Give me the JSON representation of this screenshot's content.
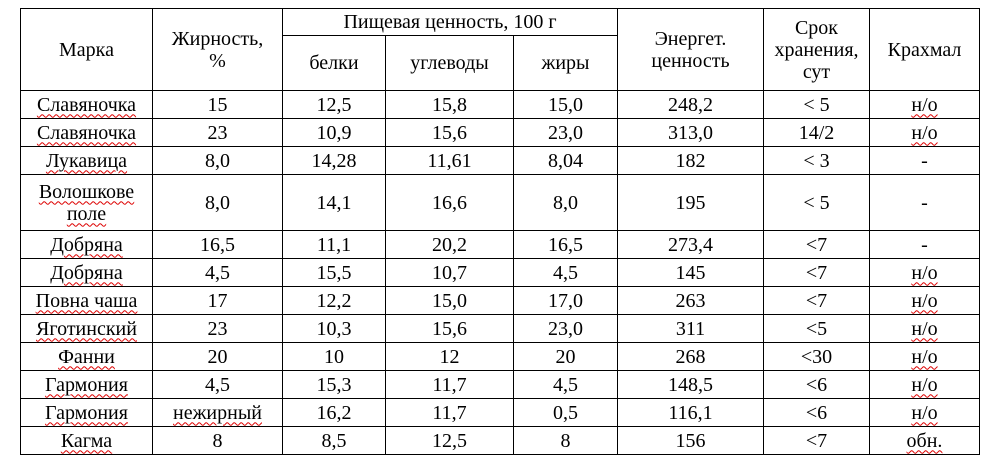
{
  "header": {
    "brand": "Марка",
    "fat": "Жирность, %",
    "nutrition": {
      "title": "Пищевая ценность, 100 г",
      "protein": "белки",
      "carbs": "углеводы",
      "fats": "жиры"
    },
    "energy": "Энергет. ценность",
    "shelf_life": "Срок хранения, сут",
    "starch": "Крахмал"
  },
  "table": {
    "rows": [
      [
        "Славяночка",
        "15",
        "12,5",
        "15,8",
        "15,0",
        "248,2",
        "< 5",
        "н/о"
      ],
      [
        "Славяночка",
        "23",
        "10,9",
        "15,6",
        "23,0",
        "313,0",
        "14/2",
        "н/о"
      ],
      [
        "Лукавица",
        "8,0",
        "14,28",
        "11,61",
        "8,04",
        "182",
        "< 3",
        "-"
      ],
      [
        "Волошкове поле",
        "8,0",
        "14,1",
        "16,6",
        "8,0",
        "195",
        "< 5",
        "-"
      ],
      [
        "Добряна",
        "16,5",
        "11,1",
        "20,2",
        "16,5",
        "273,4",
        "<7",
        "-"
      ],
      [
        "Добряна",
        "4,5",
        "15,5",
        "10,7",
        "4,5",
        "145",
        "<7",
        "н/о"
      ],
      [
        "Повна чаша",
        "17",
        "12,2",
        "15,0",
        "17,0",
        "263",
        "<7",
        "н/о"
      ],
      [
        "Яготинский",
        "23",
        "10,3",
        "15,6",
        "23,0",
        "311",
        "<5",
        "н/о"
      ],
      [
        "Фанни",
        "20",
        "10",
        "12",
        "20",
        "268",
        "<30",
        "н/о"
      ],
      [
        "Гармония",
        "4,5",
        "15,3",
        "11,7",
        "4,5",
        "148,5",
        "<6",
        "н/о"
      ],
      [
        "Гармония",
        "нежирный",
        "16,2",
        "11,7",
        "0,5",
        "116,1",
        "<6",
        "н/о"
      ],
      [
        "Кагма",
        "8",
        "8,5",
        "12,5",
        "8",
        "156",
        "<7",
        "обн."
      ]
    ]
  }
}
